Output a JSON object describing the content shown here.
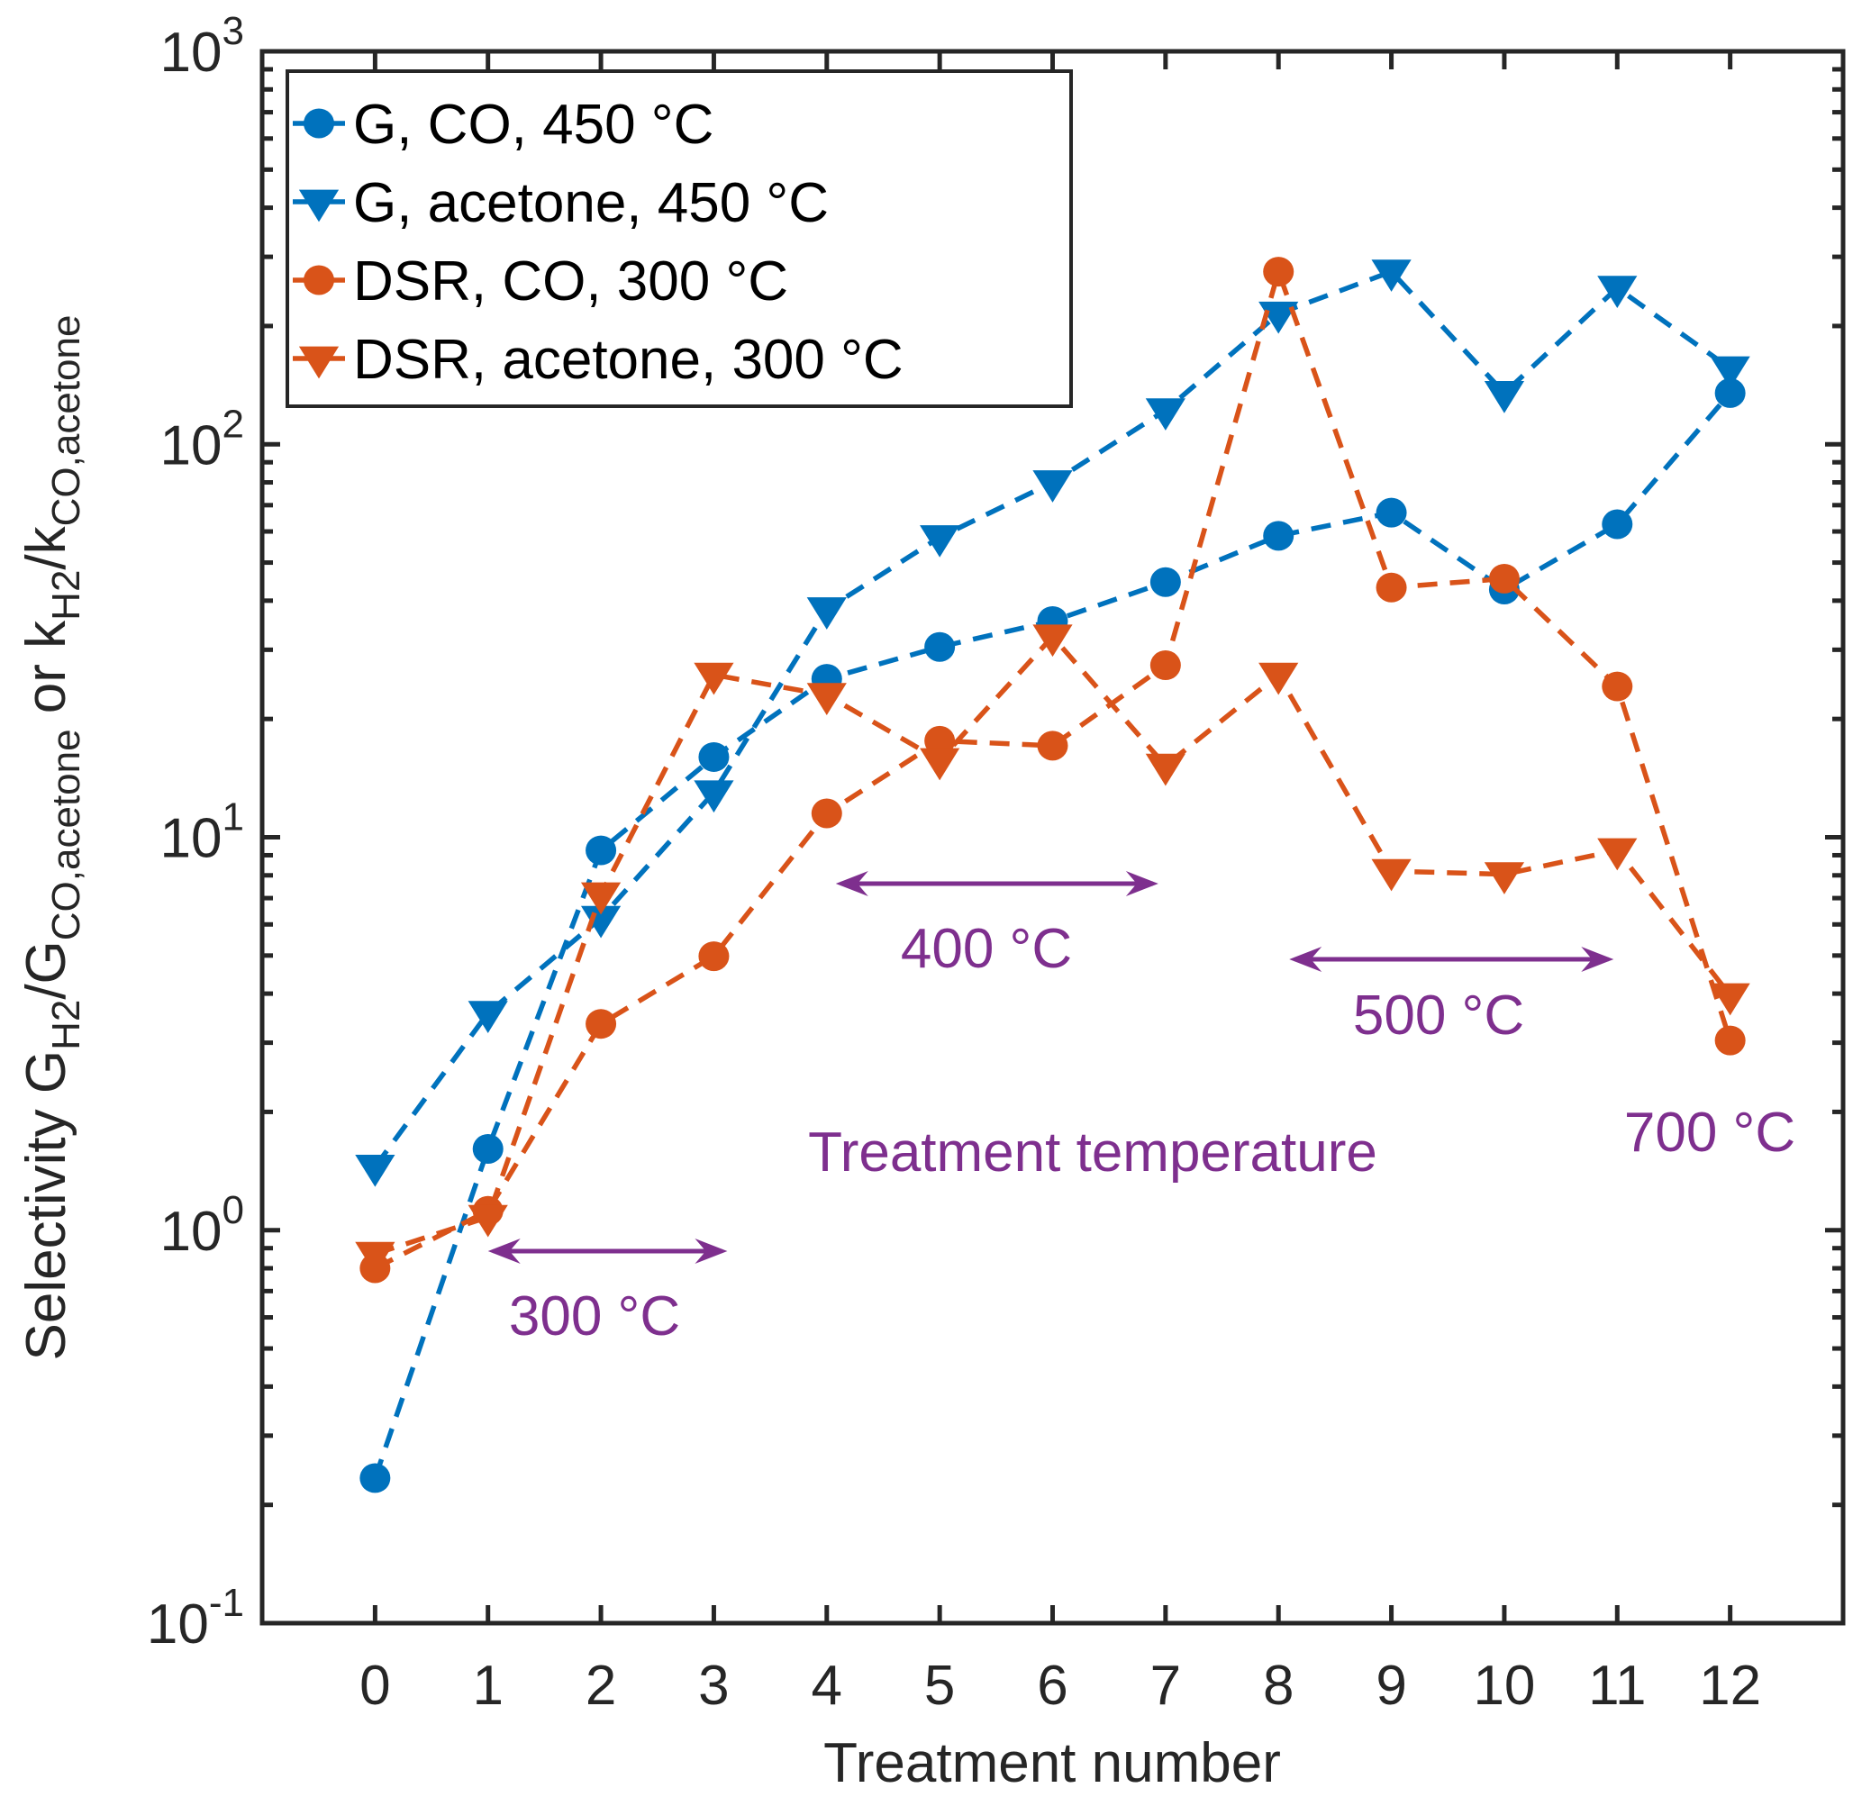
{
  "chart_data": {
    "type": "line",
    "title": "",
    "xlabel": "Treatment number",
    "ylabel": {
      "parts": [
        {
          "text": "Selectivity G",
          "style": "normal"
        },
        {
          "text": "H2",
          "style": "sub"
        },
        {
          "text": "/G",
          "style": "normal"
        },
        {
          "text": "CO,acetone",
          "style": "sub"
        },
        {
          "text": " or k",
          "style": "normal"
        },
        {
          "text": "H2",
          "style": "sub"
        },
        {
          "text": "/k",
          "style": "normal"
        },
        {
          "text": "CO,acetone",
          "style": "sub"
        }
      ]
    },
    "xscale": "linear",
    "yscale": "log",
    "xlim": [
      -1,
      13
    ],
    "ylim": [
      0.1,
      1000
    ],
    "grid": false,
    "x": [
      0,
      1,
      2,
      3,
      4,
      5,
      6,
      7,
      8,
      9,
      10,
      11,
      12
    ],
    "xticks": [
      "0",
      "1",
      "2",
      "3",
      "4",
      "5",
      "6",
      "7",
      "8",
      "9",
      "10",
      "11",
      "12"
    ],
    "yticks": [
      {
        "base": "10",
        "exp": "-1",
        "value": 0.1
      },
      {
        "base": "10",
        "exp": "0",
        "value": 1
      },
      {
        "base": "10",
        "exp": "1",
        "value": 10
      },
      {
        "base": "10",
        "exp": "2",
        "value": 100
      },
      {
        "base": "10",
        "exp": "3",
        "value": 1000
      }
    ],
    "legend_position": "top-left",
    "series": [
      {
        "name": "G, CO, 450 °C",
        "color": "#0072BD",
        "marker": "circle",
        "line": "dashed",
        "values": [
          0.234,
          1.61,
          9.26,
          16.0,
          25.3,
          30.5,
          35.5,
          44.6,
          58.5,
          67.0,
          42.7,
          62.6,
          135
        ]
      },
      {
        "name": "G, acetone, 450 °C",
        "color": "#0072BD",
        "marker": "triangle-down",
        "line": "dashed",
        "values": [
          1.45,
          3.57,
          6.23,
          13.0,
          38.0,
          58.0,
          80.0,
          122,
          215,
          275,
          135,
          250,
          156
        ]
      },
      {
        "name": "DSR, CO, 300 °C",
        "color": "#D95319",
        "marker": "circle",
        "line": "dashed",
        "values": [
          0.8,
          1.12,
          3.35,
          4.98,
          11.5,
          17.6,
          17.1,
          27.4,
          275,
          43.2,
          45.5,
          24.2,
          3.04
        ]
      },
      {
        "name": "DSR, acetone, 300 °C",
        "color": "#D95319",
        "marker": "triangle-down",
        "line": "dashed",
        "values": [
          0.87,
          1.08,
          7.15,
          25.9,
          23.0,
          15.7,
          32.4,
          15.2,
          25.9,
          8.2,
          8.05,
          9.26,
          3.96
        ]
      }
    ],
    "annotations": [
      {
        "text": "300 °C",
        "type": "double-arrow",
        "x_from": 1,
        "x_to": 3,
        "y": 0.88,
        "color": "#7E2F8E"
      },
      {
        "text": "400 °C",
        "type": "double-arrow",
        "x_from": 4,
        "x_to": 7,
        "y": 7.5,
        "color": "#7E2F8E"
      },
      {
        "text": "500 °C",
        "type": "double-arrow",
        "x_from": 8,
        "x_to": 11,
        "y": 4.9,
        "color": "#7E2F8E"
      },
      {
        "text": "Treatment temperature",
        "type": "text",
        "color": "#7E2F8E"
      },
      {
        "text": "700 °C",
        "type": "text",
        "color": "#7E2F8E"
      }
    ]
  }
}
